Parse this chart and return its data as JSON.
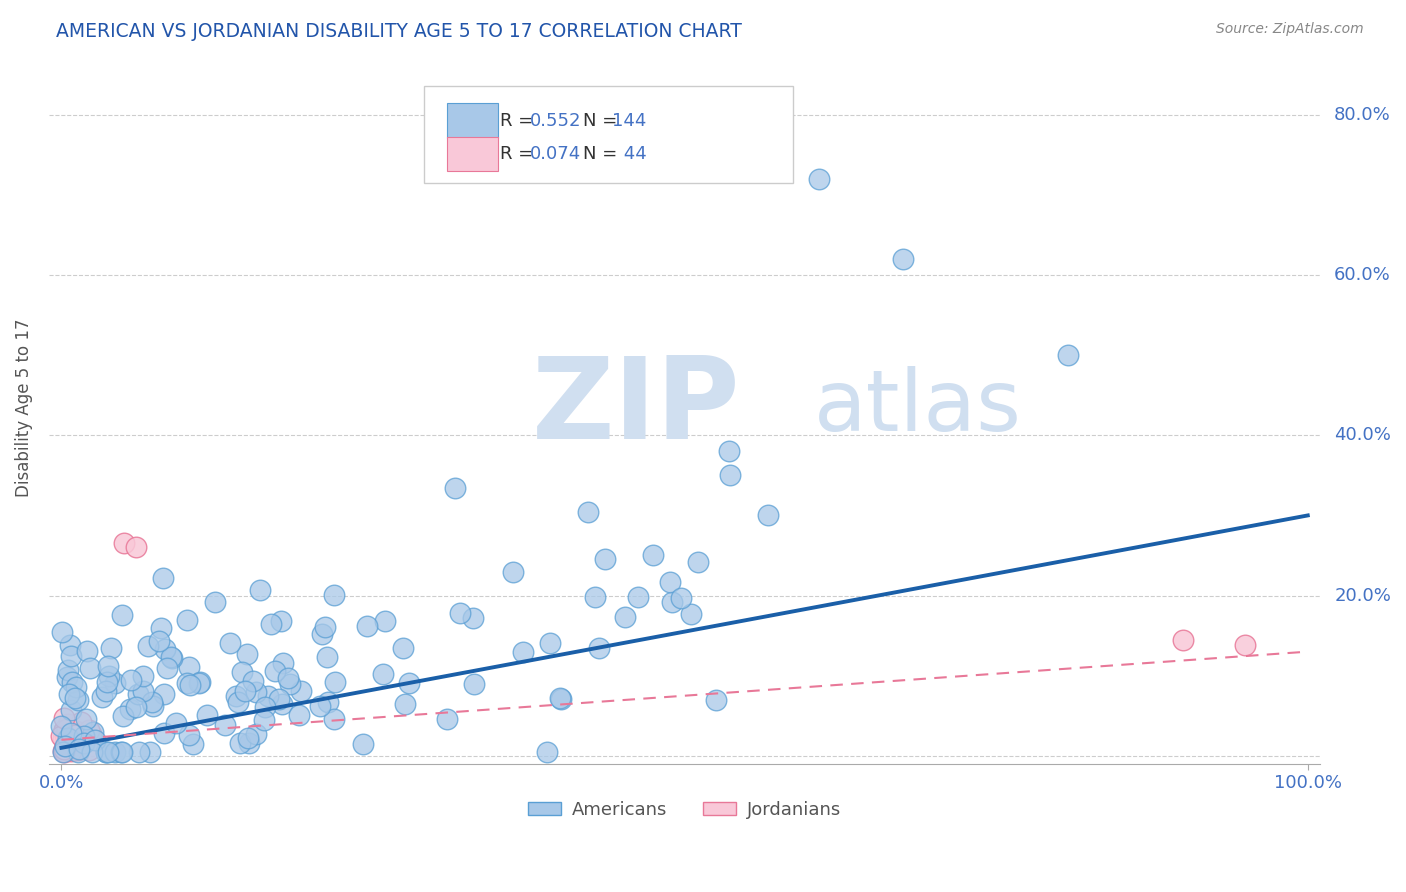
{
  "title": "AMERICAN VS JORDANIAN DISABILITY AGE 5 TO 17 CORRELATION CHART",
  "source_text": "Source: ZipAtlas.com",
  "ylabel": "Disability Age 5 to 17",
  "r_american": 0.552,
  "n_american": 144,
  "r_jordanian": 0.074,
  "n_jordanian": 44,
  "legend_labels": [
    "Americans",
    "Jordanians"
  ],
  "blue_color": "#a8c8e8",
  "blue_edge": "#5a9fd4",
  "pink_color": "#f9c8d8",
  "pink_edge": "#e87898",
  "blue_line_color": "#1a5fa8",
  "pink_line_color": "#e87898",
  "watermark_zip": "ZIP",
  "watermark_atlas": "atlas",
  "background_color": "#ffffff",
  "grid_color": "#c8c8c8",
  "title_color": "#2255aa",
  "axis_label_color": "#4472c4",
  "legend_text_color": "#4472c4",
  "yticks": [
    0.0,
    0.2,
    0.4,
    0.6,
    0.8
  ],
  "ytick_labels": [
    "",
    "20.0%",
    "40.0%",
    "60.0%",
    "80.0%"
  ],
  "xlim": [
    -0.01,
    1.01
  ],
  "ylim": [
    -0.01,
    0.88
  ]
}
